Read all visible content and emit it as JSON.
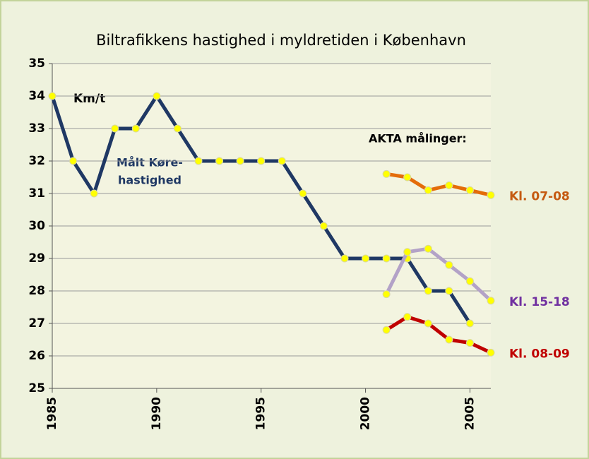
{
  "chart_data": {
    "type": "line",
    "title": "Biltrafikkens hastighed i myldretiden i København",
    "annotations": {
      "unit": "Km/t",
      "series_note": [
        "Målt Køre-",
        "hastighed"
      ],
      "group_note": "AKTA målinger:"
    },
    "xlim": [
      1985,
      2006
    ],
    "xticks": [
      1985,
      1990,
      1995,
      2000,
      2005
    ],
    "ylim": [
      25,
      35
    ],
    "yticks": [
      25,
      26,
      27,
      28,
      29,
      30,
      31,
      32,
      33,
      34,
      35
    ],
    "grid": true,
    "series": [
      {
        "color": "#1f3864",
        "x": [
          1985,
          1986,
          1987,
          1988,
          1989,
          1990,
          1991,
          1992,
          1993,
          1994,
          1995,
          1996,
          1997,
          1998,
          1999,
          2000,
          2001,
          2002,
          2003,
          2004,
          2005
        ],
        "values": [
          34,
          32,
          31,
          33,
          33,
          34,
          33,
          32,
          32,
          32,
          32,
          32,
          31,
          30,
          29,
          29,
          29,
          29,
          28,
          28,
          27
        ]
      },
      {
        "name": "Kl. 07-08",
        "color": "#e46c0a",
        "label_color": "#c55a11",
        "x": [
          2001,
          2002,
          2003,
          2004,
          2005,
          2006
        ],
        "values": [
          31.6,
          31.5,
          31.1,
          31.25,
          31.1,
          30.95
        ]
      },
      {
        "name": "Kl. 15-18",
        "color": "#b3a2c7",
        "label_color": "#7030a0",
        "x": [
          2001,
          2002,
          2003,
          2004,
          2005,
          2006
        ],
        "values": [
          27.9,
          29.2,
          29.3,
          28.8,
          28.3,
          27.7
        ]
      },
      {
        "name": "Kl. 08-09",
        "color": "#c00000",
        "label_color": "#c00000",
        "x": [
          2001,
          2002,
          2003,
          2004,
          2005,
          2006
        ],
        "values": [
          26.8,
          27.2,
          27.0,
          26.5,
          26.4,
          26.1
        ]
      }
    ]
  }
}
